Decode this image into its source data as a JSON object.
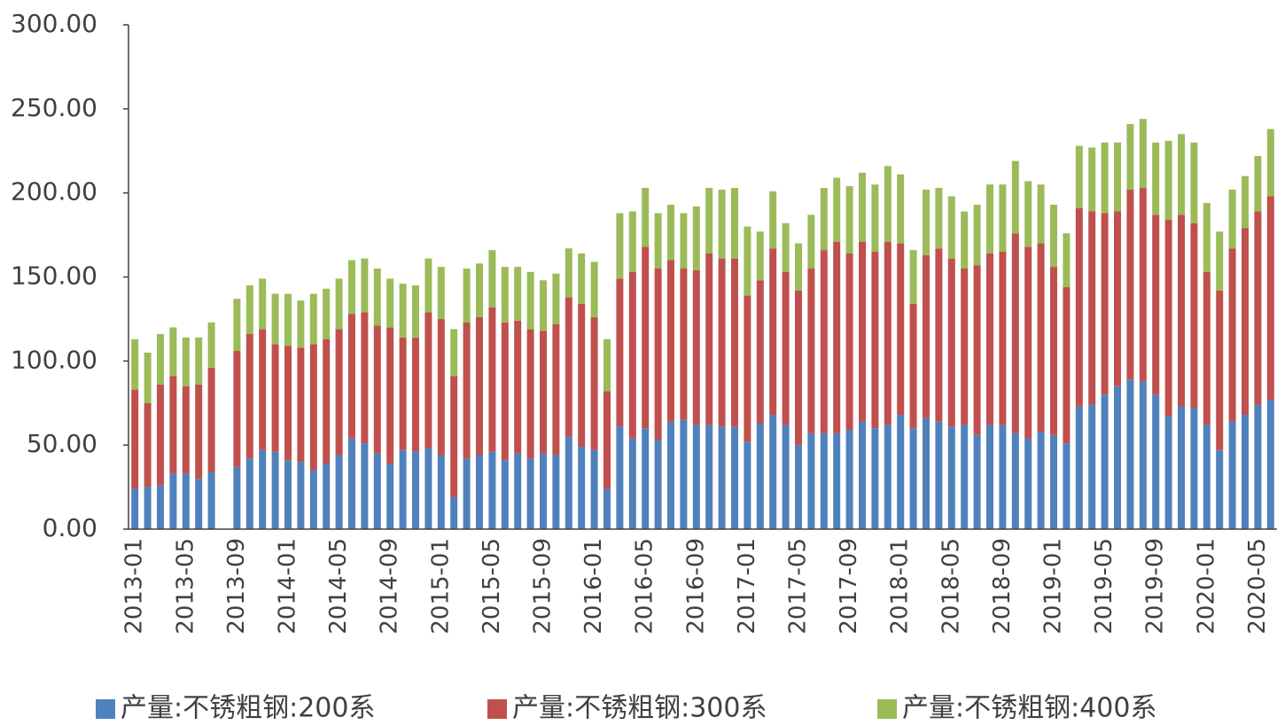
{
  "chart_data": {
    "type": "stacked_bar",
    "categories": [
      "2013-01",
      null,
      null,
      null,
      "2013-05",
      null,
      null,
      null,
      "2013-09",
      null,
      null,
      null,
      "2014-01",
      null,
      null,
      null,
      "2014-05",
      null,
      null,
      null,
      "2014-09",
      null,
      null,
      null,
      "2015-01",
      null,
      null,
      null,
      "2015-05",
      null,
      null,
      null,
      "2015-09",
      null,
      null,
      null,
      "2016-01",
      null,
      null,
      null,
      "2016-05",
      null,
      null,
      null,
      "2016-09",
      null,
      null,
      null,
      "2017-01",
      null,
      null,
      null,
      "2017-05",
      null,
      null,
      null,
      "2017-09",
      null,
      null,
      null,
      "2018-01",
      null,
      null,
      null,
      "2018-05",
      null,
      null,
      null,
      "2018-09",
      null,
      null,
      null,
      "2019-01",
      null,
      null,
      null,
      "2019-05",
      null,
      null,
      null,
      "2019-09",
      null,
      null,
      null,
      "2020-01",
      null,
      null,
      null,
      "2020-05",
      null
    ],
    "series": [
      {
        "name": "产量:不锈粗钢:200系",
        "color": "#4f81bd",
        "values": [
          24,
          25,
          26,
          33,
          33,
          30,
          34,
          null,
          37,
          42,
          47,
          46,
          41,
          40,
          35,
          39,
          44,
          54,
          51,
          45,
          39,
          47,
          46,
          48,
          44,
          19,
          42,
          44,
          46,
          41,
          45,
          42,
          45,
          44,
          55,
          49,
          47,
          24,
          61,
          54,
          60,
          53,
          64,
          65,
          62,
          62,
          61,
          61,
          52,
          63,
          68,
          62,
          50,
          57,
          57,
          57,
          59,
          64,
          60,
          62,
          68,
          60,
          66,
          64,
          61,
          62,
          56,
          62,
          62,
          57,
          54,
          58,
          56,
          51,
          73,
          74,
          80,
          85,
          89,
          88,
          80,
          67,
          73,
          72,
          62,
          47,
          64,
          68,
          74,
          77
        ]
      },
      {
        "name": "产量:不锈粗钢:300系",
        "color": "#c0504d",
        "values": [
          59,
          50,
          60,
          58,
          52,
          56,
          62,
          null,
          69,
          74,
          72,
          64,
          68,
          68,
          75,
          74,
          75,
          74,
          78,
          76,
          81,
          67,
          68,
          81,
          81,
          72,
          81,
          82,
          86,
          82,
          79,
          77,
          73,
          78,
          83,
          85,
          79,
          58,
          88,
          99,
          108,
          102,
          96,
          90,
          92,
          102,
          100,
          100,
          87,
          85,
          99,
          91,
          92,
          98,
          109,
          114,
          105,
          107,
          105,
          109,
          102,
          74,
          97,
          103,
          100,
          93,
          101,
          102,
          103,
          119,
          114,
          112,
          100,
          93,
          118,
          115,
          108,
          104,
          113,
          115,
          107,
          117,
          114,
          110,
          91,
          95,
          103,
          111,
          115,
          121
        ]
      },
      {
        "name": "产量:不锈粗钢:400系",
        "color": "#9bbb59",
        "values": [
          30,
          30,
          30,
          29,
          29,
          28,
          27,
          null,
          31,
          29,
          30,
          30,
          31,
          28,
          30,
          30,
          30,
          32,
          32,
          34,
          29,
          32,
          31,
          32,
          31,
          28,
          32,
          32,
          34,
          33,
          32,
          34,
          30,
          30,
          29,
          30,
          33,
          31,
          39,
          36,
          35,
          33,
          33,
          33,
          38,
          39,
          41,
          42,
          41,
          29,
          34,
          29,
          28,
          32,
          37,
          38,
          40,
          41,
          40,
          45,
          41,
          32,
          39,
          36,
          37,
          34,
          36,
          41,
          40,
          43,
          39,
          35,
          37,
          32,
          37,
          38,
          42,
          41,
          39,
          41,
          43,
          47,
          48,
          48,
          41,
          35,
          35,
          31,
          33,
          40
        ]
      }
    ],
    "ylim": [
      0,
      300
    ],
    "yticks": [
      {
        "value": 0,
        "label": "0.00"
      },
      {
        "value": 50,
        "label": "50.00"
      },
      {
        "value": 100,
        "label": "100.00"
      },
      {
        "value": 150,
        "label": "150.00"
      },
      {
        "value": 200,
        "label": "200.00"
      },
      {
        "value": 250,
        "label": "250.00"
      },
      {
        "value": 300,
        "label": "300.00"
      }
    ],
    "legend": "bottom"
  }
}
